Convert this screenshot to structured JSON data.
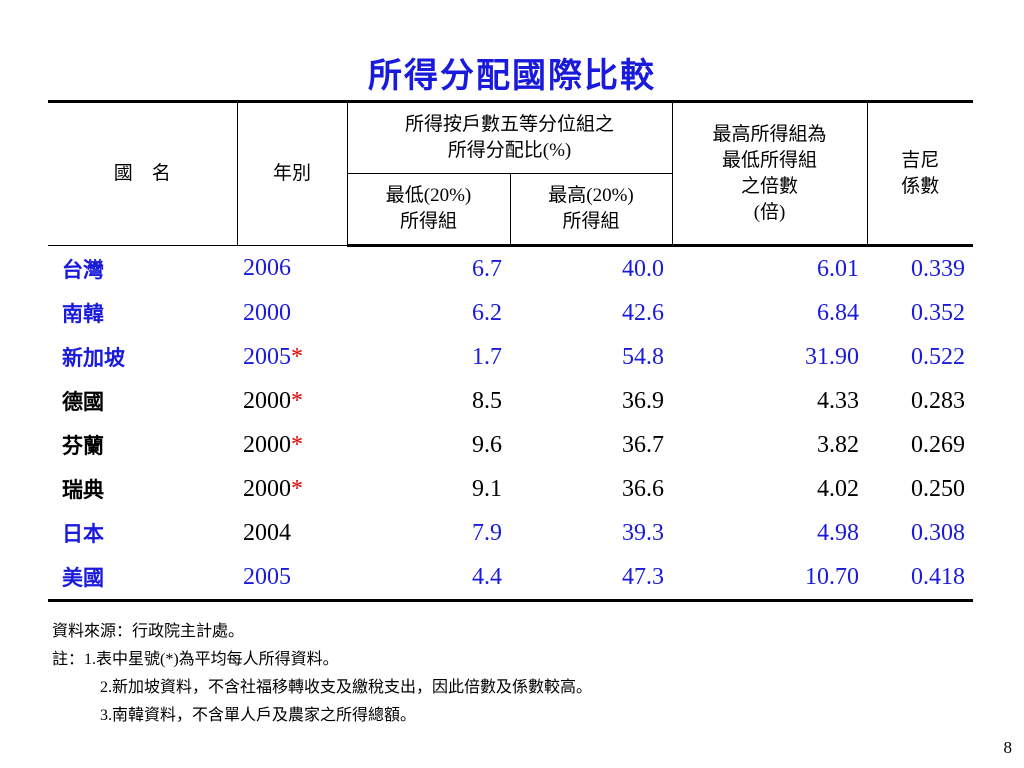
{
  "title": "所得分配國際比較",
  "table": {
    "headers": {
      "country": "國　名",
      "year": "年別",
      "quintile_group_line1": "所得按戶數五等分位組之",
      "quintile_group_line2": "所得分配比(%)",
      "lowest_line1": "最低(20%)",
      "lowest_line2": "所得組",
      "highest_line1": "最高(20%)",
      "highest_line2": "所得組",
      "ratio_line1": "最高所得組為",
      "ratio_line2": "最低所得組",
      "ratio_line3": "之倍數",
      "ratio_line4": "(倍)",
      "gini_line1": "吉尼",
      "gini_line2": "係數"
    },
    "rows": [
      {
        "country": "台灣",
        "year": "2006",
        "star": "",
        "lowest": "6.7",
        "highest": "40.0",
        "ratio": "6.01",
        "gini": "0.339",
        "country_color": "#1a1adc",
        "year_color": "#1a1adc",
        "value_color": "#1a1adc"
      },
      {
        "country": "南韓",
        "year": "2000",
        "star": "",
        "lowest": "6.2",
        "highest": "42.6",
        "ratio": "6.84",
        "gini": "0.352",
        "country_color": "#1a1adc",
        "year_color": "#1a1adc",
        "value_color": "#1a1adc"
      },
      {
        "country": "新加坡",
        "year": "2005",
        "star": "*",
        "lowest": "1.7",
        "highest": "54.8",
        "ratio": "31.90",
        "gini": "0.522",
        "country_color": "#1a1adc",
        "year_color": "#1a1adc",
        "value_color": "#1a1adc"
      },
      {
        "country": "德國",
        "year": "2000",
        "star": "*",
        "lowest": "8.5",
        "highest": "36.9",
        "ratio": "4.33",
        "gini": "0.283",
        "country_color": "#000000",
        "year_color": "#000000",
        "value_color": "#000000"
      },
      {
        "country": "芬蘭",
        "year": "2000",
        "star": "*",
        "lowest": "9.6",
        "highest": "36.7",
        "ratio": "3.82",
        "gini": "0.269",
        "country_color": "#000000",
        "year_color": "#000000",
        "value_color": "#000000"
      },
      {
        "country": "瑞典",
        "year": "2000",
        "star": "*",
        "lowest": "9.1",
        "highest": "36.6",
        "ratio": "4.02",
        "gini": "0.250",
        "country_color": "#000000",
        "year_color": "#000000",
        "value_color": "#000000"
      },
      {
        "country": "日本",
        "year": "2004",
        "star": "",
        "lowest": "7.9",
        "highest": "39.3",
        "ratio": "4.98",
        "gini": "0.308",
        "country_color": "#1a1adc",
        "year_color": "#000000",
        "value_color": "#1a1adc"
      },
      {
        "country": "美國",
        "year": "2005",
        "star": "",
        "lowest": "4.4",
        "highest": "47.3",
        "ratio": "10.70",
        "gini": "0.418",
        "country_color": "#1a1adc",
        "year_color": "#1a1adc",
        "value_color": "#1a1adc"
      }
    ]
  },
  "notes": {
    "source": "資料來源：行政院主計處。",
    "note1": "註：1.表中星號(*)為平均每人所得資料。",
    "note2": "2.新加坡資料，不含社福移轉收支及繳稅支出，因此倍數及係數較高。",
    "note3": "3.南韓資料，不含單人戶及農家之所得總額。"
  },
  "page_number": "8",
  "colors": {
    "accent_blue": "#1a1adc",
    "star_red": "#e00000"
  }
}
